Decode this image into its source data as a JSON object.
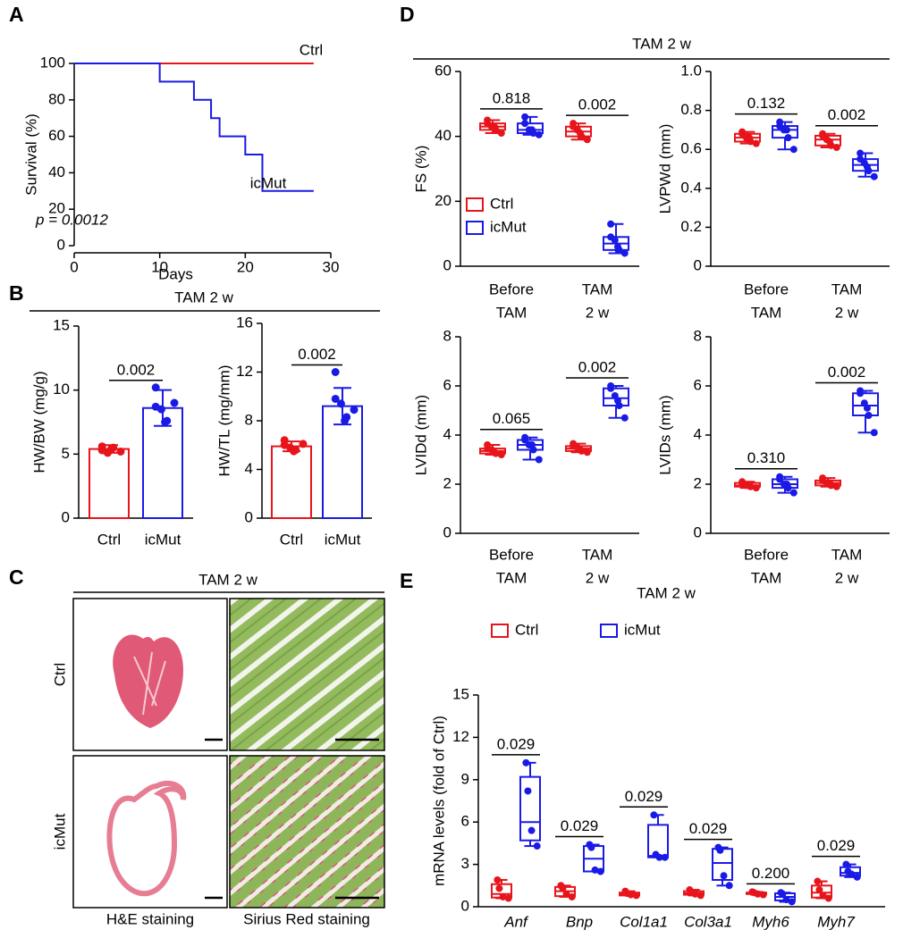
{
  "panel_labels": [
    "A",
    "B",
    "C",
    "D",
    "E"
  ],
  "section_titles": {
    "B": "TAM 2 w",
    "D": "TAM 2 w"
  },
  "histology": {
    "title": "TAM 2 w",
    "rows": [
      "Ctrl",
      "icMut"
    ],
    "columns": [
      "H&E staining",
      "Sirius Red staining"
    ]
  },
  "chart_data": [
    {
      "type": "line",
      "step": true,
      "xlabel": "Days",
      "ylabel": "Survival (%)",
      "annotation": "p = 0.0012",
      "xlim": [
        0,
        30
      ],
      "xticks": [
        0,
        10,
        20,
        30
      ],
      "ylim": [
        0,
        100
      ],
      "yticks": [
        0,
        20,
        40,
        60,
        80,
        100
      ],
      "series": [
        {
          "name": "Ctrl",
          "color": "#e8141b",
          "x": [
            0,
            28
          ],
          "values": [
            100,
            100
          ]
        },
        {
          "name": "icMut",
          "color": "#1a1ae6",
          "x": [
            0,
            10,
            14,
            16,
            17,
            20,
            22,
            28
          ],
          "values": [
            100,
            90,
            80,
            70,
            60,
            50,
            30,
            30
          ]
        }
      ]
    },
    {
      "type": "bar",
      "ylabel": "HW/BW (mg/g)",
      "ylim": [
        0,
        15
      ],
      "yticks": [
        0,
        5,
        10,
        15
      ],
      "categories": [
        "Ctrl",
        "icMut"
      ],
      "colors": [
        "#e8141b",
        "#1a1ae6"
      ],
      "values": [
        5.4,
        8.6
      ],
      "errors": [
        0.3,
        1.4
      ],
      "points": [
        [
          5.6,
          5.3,
          5.1,
          5.4,
          5.5,
          5.2
        ],
        [
          10.2,
          8.7,
          8.5,
          7.5,
          7.6,
          9.0
        ]
      ],
      "p_values": [
        "0.002"
      ]
    },
    {
      "type": "bar",
      "ylabel": "HW/TL (mg/mm)",
      "ylim": [
        0,
        16
      ],
      "yticks": [
        0,
        4,
        8,
        12,
        16
      ],
      "categories": [
        "Ctrl",
        "icMut"
      ],
      "colors": [
        "#e8141b",
        "#1a1ae6"
      ],
      "values": [
        5.9,
        9.2
      ],
      "errors": [
        0.4,
        1.5
      ],
      "points": [
        [
          6.4,
          6.0,
          5.8,
          5.5,
          5.6,
          6.1
        ],
        [
          12.0,
          9.8,
          9.4,
          8.0,
          8.3,
          8.9
        ]
      ],
      "p_values": [
        "0.002"
      ]
    },
    {
      "type": "box",
      "ylabel": "FS (%)",
      "ylim": [
        0,
        60
      ],
      "yticks": [
        0,
        20,
        40,
        60
      ],
      "categories": [
        [
          "Before",
          "TAM"
        ],
        [
          "TAM",
          "2 w"
        ]
      ],
      "p_values": [
        "0.818",
        "0.002"
      ],
      "legend": true,
      "series": [
        {
          "name": "Ctrl",
          "color": "#e8141b",
          "boxes": [
            {
              "min": 41,
              "q1": 42,
              "median": 43,
              "q3": 44,
              "max": 45,
              "points": [
                45,
                44,
                43,
                43,
                42,
                41
              ]
            },
            {
              "min": 39,
              "q1": 40,
              "median": 41.5,
              "q3": 43,
              "max": 44,
              "points": [
                44,
                43,
                42,
                41,
                40,
                39
              ]
            }
          ]
        },
        {
          "name": "icMut",
          "color": "#1a1ae6",
          "boxes": [
            {
              "min": 40.5,
              "q1": 41,
              "median": 42,
              "q3": 44,
              "max": 46,
              "points": [
                46,
                44,
                42,
                42,
                41,
                40.5
              ]
            },
            {
              "min": 4,
              "q1": 5,
              "median": 7,
              "q3": 9,
              "max": 13,
              "points": [
                13,
                9,
                8,
                6,
                5,
                4
              ]
            }
          ]
        }
      ]
    },
    {
      "type": "box",
      "ylabel": "LVPWd (mm)",
      "ylim": [
        0,
        1
      ],
      "yticks": [
        0,
        0.2,
        0.4,
        0.6,
        0.8,
        {
          "value": 1,
          "label": "1.0"
        }
      ],
      "categories": [
        [
          "Before",
          "TAM"
        ],
        [
          "TAM",
          "2 w"
        ]
      ],
      "p_values": [
        "0.132",
        "0.002"
      ],
      "series": [
        {
          "color": "#e8141b",
          "boxes": [
            {
              "min": 0.63,
              "q1": 0.64,
              "median": 0.66,
              "q3": 0.68,
              "max": 0.69,
              "points": [
                0.69,
                0.68,
                0.66,
                0.66,
                0.64,
                0.63
              ]
            },
            {
              "min": 0.61,
              "q1": 0.62,
              "median": 0.65,
              "q3": 0.67,
              "max": 0.68,
              "points": [
                0.68,
                0.67,
                0.65,
                0.64,
                0.62,
                0.61
              ]
            }
          ]
        },
        {
          "color": "#1a1ae6",
          "boxes": [
            {
              "min": 0.6,
              "q1": 0.66,
              "median": 0.7,
              "q3": 0.72,
              "max": 0.74,
              "points": [
                0.74,
                0.72,
                0.7,
                0.7,
                0.66,
                0.6
              ]
            },
            {
              "min": 0.46,
              "q1": 0.49,
              "median": 0.52,
              "q3": 0.55,
              "max": 0.58,
              "points": [
                0.58,
                0.55,
                0.53,
                0.51,
                0.49,
                0.46
              ]
            }
          ]
        }
      ]
    },
    {
      "type": "box",
      "ylabel": "LVIDd (mm)",
      "ylim": [
        0,
        8
      ],
      "yticks": [
        0,
        2,
        4,
        6,
        8
      ],
      "categories": [
        [
          "Before",
          "TAM"
        ],
        [
          "TAM",
          "2 w"
        ]
      ],
      "p_values": [
        "0.065",
        "0.002"
      ],
      "series": [
        {
          "color": "#e8141b",
          "boxes": [
            {
              "min": 3.2,
              "q1": 3.25,
              "median": 3.35,
              "q3": 3.45,
              "max": 3.6,
              "points": [
                3.6,
                3.45,
                3.4,
                3.3,
                3.25,
                3.2
              ]
            },
            {
              "min": 3.3,
              "q1": 3.35,
              "median": 3.45,
              "q3": 3.55,
              "max": 3.65,
              "points": [
                3.65,
                3.55,
                3.5,
                3.4,
                3.35,
                3.3
              ]
            }
          ]
        },
        {
          "color": "#1a1ae6",
          "boxes": [
            {
              "min": 3.0,
              "q1": 3.4,
              "median": 3.6,
              "q3": 3.8,
              "max": 3.9,
              "points": [
                3.9,
                3.8,
                3.6,
                3.6,
                3.4,
                3.0
              ]
            },
            {
              "min": 4.7,
              "q1": 5.2,
              "median": 5.5,
              "q3": 5.9,
              "max": 6.0,
              "points": [
                6.0,
                5.9,
                5.6,
                5.4,
                5.2,
                4.7
              ]
            }
          ]
        }
      ]
    },
    {
      "type": "box",
      "ylabel": "LVIDs (mm)",
      "ylim": [
        0,
        8
      ],
      "yticks": [
        0,
        2,
        4,
        6,
        8
      ],
      "categories": [
        [
          "Before",
          "TAM"
        ],
        [
          "TAM",
          "2 w"
        ]
      ],
      "p_values": [
        "0.310",
        "0.002"
      ],
      "series": [
        {
          "color": "#e8141b",
          "boxes": [
            {
              "min": 1.85,
              "q1": 1.9,
              "median": 1.95,
              "q3": 2.05,
              "max": 2.1,
              "points": [
                2.1,
                2.05,
                1.95,
                1.95,
                1.9,
                1.85
              ]
            },
            {
              "min": 1.9,
              "q1": 1.95,
              "median": 2.05,
              "q3": 2.15,
              "max": 2.25,
              "points": [
                2.25,
                2.15,
                2.05,
                2.05,
                1.95,
                1.9
              ]
            }
          ]
        },
        {
          "color": "#1a1ae6",
          "boxes": [
            {
              "min": 1.65,
              "q1": 1.85,
              "median": 2.0,
              "q3": 2.2,
              "max": 2.3,
              "points": [
                2.3,
                2.2,
                2.0,
                2.0,
                1.85,
                1.65
              ]
            },
            {
              "min": 4.1,
              "q1": 4.8,
              "median": 5.2,
              "q3": 5.7,
              "max": 5.8,
              "points": [
                5.8,
                5.7,
                5.3,
                5.1,
                4.8,
                4.1
              ]
            }
          ]
        }
      ]
    },
    {
      "type": "box",
      "title": "TAM 2 w",
      "ylabel": "mRNA levels (fold of Ctrl)",
      "ylim": [
        0,
        15
      ],
      "yticks": [
        0,
        3,
        6,
        9,
        12,
        15
      ],
      "categories": [
        "Anf",
        "Bnp",
        "Col1a1",
        "Col3a1",
        "Myh6",
        "Myh7"
      ],
      "legend": true,
      "p_values": [
        "0.029",
        "0.029",
        "0.029",
        "0.029",
        "0.200",
        "0.029"
      ],
      "series": [
        {
          "name": "Ctrl",
          "color": "#e8141b",
          "boxes": [
            {
              "min": 0.6,
              "q1": 0.65,
              "median": 0.9,
              "q3": 1.6,
              "max": 1.9,
              "points": [
                1.9,
                1.3,
                0.7,
                0.6
              ]
            },
            {
              "min": 0.7,
              "q1": 0.75,
              "median": 1.1,
              "q3": 1.4,
              "max": 1.5,
              "points": [
                1.5,
                1.3,
                0.9,
                0.7
              ]
            },
            {
              "min": 0.8,
              "q1": 0.8,
              "median": 0.9,
              "q3": 1.0,
              "max": 1.1,
              "points": [
                1.1,
                0.95,
                0.85,
                0.8
              ]
            },
            {
              "min": 0.8,
              "q1": 0.85,
              "median": 0.95,
              "q3": 1.1,
              "max": 1.2,
              "points": [
                1.2,
                1.0,
                0.9,
                0.8
              ]
            },
            {
              "min": 0.85,
              "q1": 0.9,
              "median": 0.95,
              "q3": 1.0,
              "max": 1.05,
              "points": [
                1.05,
                1.0,
                0.9,
                0.85
              ]
            },
            {
              "min": 0.6,
              "q1": 0.65,
              "median": 1.0,
              "q3": 1.5,
              "max": 1.8,
              "points": [
                1.8,
                1.2,
                0.8,
                0.6
              ]
            }
          ]
        },
        {
          "name": "icMut",
          "color": "#1a1ae6",
          "boxes": [
            {
              "min": 4.3,
              "q1": 4.7,
              "median": 6.0,
              "q3": 9.2,
              "max": 10.2,
              "points": [
                10.2,
                8.2,
                5.4,
                4.3
              ]
            },
            {
              "min": 2.5,
              "q1": 2.5,
              "median": 3.4,
              "q3": 4.3,
              "max": 4.4,
              "points": [
                4.4,
                4.2,
                2.6,
                2.5
              ]
            },
            {
              "min": 3.5,
              "q1": 3.5,
              "median": 3.6,
              "q3": 5.8,
              "max": 6.5,
              "points": [
                6.5,
                3.7,
                3.5,
                3.5
              ]
            },
            {
              "min": 1.5,
              "q1": 1.9,
              "median": 3.1,
              "q3": 4.1,
              "max": 4.2,
              "points": [
                4.2,
                4.0,
                2.2,
                1.5
              ]
            },
            {
              "min": 0.35,
              "q1": 0.45,
              "median": 0.7,
              "q3": 0.95,
              "max": 1.0,
              "points": [
                1.0,
                0.9,
                0.5,
                0.35
              ]
            },
            {
              "min": 2.1,
              "q1": 2.2,
              "median": 2.4,
              "q3": 2.8,
              "max": 3.0,
              "points": [
                3.0,
                2.5,
                2.3,
                2.1
              ]
            }
          ]
        }
      ]
    }
  ]
}
